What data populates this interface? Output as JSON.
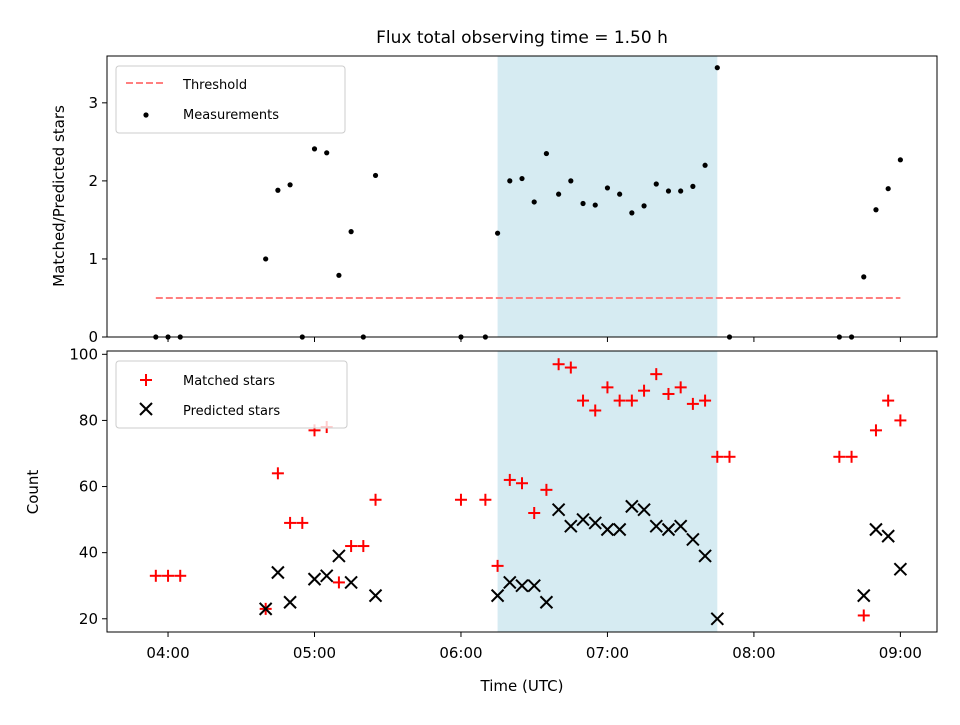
{
  "chart_data": [
    {
      "type": "scatter",
      "title": "Flux total observing time = 1.50 h",
      "ylabel": "Matched/Predicted stars",
      "xlabel": "",
      "ylim": [
        0,
        3.6
      ],
      "yticks": [
        0,
        1,
        2,
        3
      ],
      "grid": false,
      "legend": "top-left",
      "highlight_span": {
        "start": "06:15",
        "end": "07:45",
        "color": "#add8e6"
      },
      "series": [
        {
          "name": "Threshold",
          "kind": "line",
          "style": "dashed",
          "color": "#ff7f7f",
          "x": [
            "03:55",
            "09:00"
          ],
          "y": [
            0.5,
            0.5
          ]
        },
        {
          "name": "Measurements",
          "kind": "points",
          "color": "#000000",
          "points": [
            [
              "03:55",
              0.0
            ],
            [
              "04:00",
              0.0
            ],
            [
              "04:05",
              0.0
            ],
            [
              "04:40",
              1.0
            ],
            [
              "04:45",
              1.88
            ],
            [
              "04:50",
              1.95
            ],
            [
              "04:55",
              0.0
            ],
            [
              "05:00",
              2.41
            ],
            [
              "05:05",
              2.36
            ],
            [
              "05:10",
              0.79
            ],
            [
              "05:15",
              1.35
            ],
            [
              "05:20",
              0.0
            ],
            [
              "05:25",
              2.07
            ],
            [
              "06:00",
              0.0
            ],
            [
              "06:10",
              0.0
            ],
            [
              "06:15",
              1.33
            ],
            [
              "06:20",
              2.0
            ],
            [
              "06:25",
              2.03
            ],
            [
              "06:30",
              1.73
            ],
            [
              "06:35",
              2.35
            ],
            [
              "06:40",
              1.83
            ],
            [
              "06:45",
              2.0
            ],
            [
              "06:50",
              1.71
            ],
            [
              "06:55",
              1.69
            ],
            [
              "07:00",
              1.91
            ],
            [
              "07:05",
              1.83
            ],
            [
              "07:10",
              1.59
            ],
            [
              "07:15",
              1.68
            ],
            [
              "07:20",
              1.96
            ],
            [
              "07:25",
              1.87
            ],
            [
              "07:30",
              1.87
            ],
            [
              "07:35",
              1.93
            ],
            [
              "07:40",
              2.2
            ],
            [
              "07:45",
              3.45
            ],
            [
              "07:50",
              0.0
            ],
            [
              "08:35",
              0.0
            ],
            [
              "08:40",
              0.0
            ],
            [
              "08:45",
              0.77
            ],
            [
              "08:50",
              1.63
            ],
            [
              "08:55",
              1.9
            ],
            [
              "09:00",
              2.27
            ]
          ]
        }
      ]
    },
    {
      "type": "scatter",
      "title": "",
      "ylabel": "Count",
      "xlabel": "Time (UTC)",
      "ylim": [
        16,
        101
      ],
      "yticks": [
        20,
        40,
        60,
        80,
        100
      ],
      "xlim": [
        "03:35",
        "09:15"
      ],
      "xticks": [
        "04:00",
        "05:00",
        "06:00",
        "07:00",
        "08:00",
        "09:00"
      ],
      "grid": false,
      "legend": "top-left",
      "highlight_span": {
        "start": "06:15",
        "end": "07:45",
        "color": "#add8e6"
      },
      "series": [
        {
          "name": "Matched stars",
          "marker": "plus",
          "color": "#ff0000",
          "points": [
            [
              "03:55",
              33
            ],
            [
              "04:00",
              33
            ],
            [
              "04:05",
              33
            ],
            [
              "04:40",
              23
            ],
            [
              "04:45",
              64
            ],
            [
              "04:50",
              49
            ],
            [
              "04:55",
              49
            ],
            [
              "05:00",
              77
            ],
            [
              "05:05",
              78
            ],
            [
              "05:10",
              31
            ],
            [
              "05:15",
              42
            ],
            [
              "05:20",
              42
            ],
            [
              "05:25",
              56
            ],
            [
              "06:00",
              56
            ],
            [
              "06:10",
              56
            ],
            [
              "06:15",
              36
            ],
            [
              "06:20",
              62
            ],
            [
              "06:25",
              61
            ],
            [
              "06:30",
              52
            ],
            [
              "06:35",
              59
            ],
            [
              "06:40",
              97
            ],
            [
              "06:45",
              96
            ],
            [
              "06:50",
              86
            ],
            [
              "06:55",
              83
            ],
            [
              "07:00",
              90
            ],
            [
              "07:05",
              86
            ],
            [
              "07:10",
              86
            ],
            [
              "07:15",
              89
            ],
            [
              "07:20",
              94
            ],
            [
              "07:25",
              88
            ],
            [
              "07:30",
              90
            ],
            [
              "07:35",
              85
            ],
            [
              "07:40",
              86
            ],
            [
              "07:45",
              69
            ],
            [
              "07:50",
              69
            ],
            [
              "08:35",
              69
            ],
            [
              "08:40",
              69
            ],
            [
              "08:45",
              21
            ],
            [
              "08:50",
              77
            ],
            [
              "08:55",
              86
            ],
            [
              "09:00",
              80
            ]
          ]
        },
        {
          "name": "Predicted stars",
          "marker": "x",
          "color": "#000000",
          "points": [
            [
              "04:40",
              23
            ],
            [
              "04:45",
              34
            ],
            [
              "04:50",
              25
            ],
            [
              "05:00",
              32
            ],
            [
              "05:05",
              33
            ],
            [
              "05:10",
              39
            ],
            [
              "05:15",
              31
            ],
            [
              "05:25",
              27
            ],
            [
              "06:15",
              27
            ],
            [
              "06:20",
              31
            ],
            [
              "06:25",
              30
            ],
            [
              "06:30",
              30
            ],
            [
              "06:35",
              25
            ],
            [
              "06:40",
              53
            ],
            [
              "06:45",
              48
            ],
            [
              "06:50",
              50
            ],
            [
              "06:55",
              49
            ],
            [
              "07:00",
              47
            ],
            [
              "07:05",
              47
            ],
            [
              "07:10",
              54
            ],
            [
              "07:15",
              53
            ],
            [
              "07:20",
              48
            ],
            [
              "07:25",
              47
            ],
            [
              "07:30",
              48
            ],
            [
              "07:35",
              44
            ],
            [
              "07:40",
              39
            ],
            [
              "07:45",
              20
            ],
            [
              "08:45",
              27
            ],
            [
              "08:50",
              47
            ],
            [
              "08:55",
              45
            ],
            [
              "09:00",
              35
            ]
          ]
        }
      ]
    }
  ]
}
